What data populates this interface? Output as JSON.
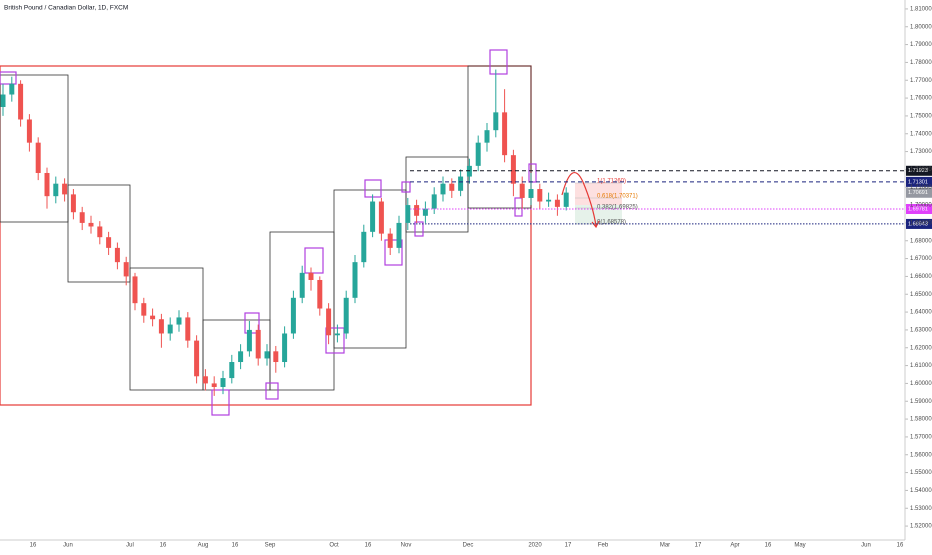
{
  "chart_data": {
    "type": "candlestick",
    "title": "British Pound / Canadian Dollar, 1D, FXCM",
    "up_color": "#26a69a",
    "down_color": "#ef5350",
    "open": [
      1.755,
      1.762,
      1.768,
      1.748,
      1.735,
      1.718,
      1.705,
      1.712,
      1.706,
      1.696,
      1.69,
      1.688,
      1.682,
      1.676,
      1.668,
      1.66,
      1.645,
      1.638,
      1.636,
      1.628,
      1.633,
      1.637,
      1.624,
      1.604,
      1.6,
      1.598,
      1.603,
      1.612,
      1.618,
      1.63,
      1.614,
      1.618,
      1.612,
      1.628,
      1.648,
      1.662,
      1.658,
      1.642,
      1.627,
      1.628,
      1.648,
      1.668,
      1.685,
      1.702,
      1.684,
      1.676,
      1.69,
      1.7,
      1.694,
      1.698,
      1.706,
      1.712,
      1.708,
      1.716,
      1.722,
      1.735,
      1.742,
      1.752,
      1.728,
      1.712,
      1.704,
      1.709,
      1.702,
      1.703,
      1.699
    ],
    "high": [
      1.768,
      1.772,
      1.77,
      1.751,
      1.738,
      1.721,
      1.716,
      1.715,
      1.709,
      1.699,
      1.694,
      1.691,
      1.685,
      1.679,
      1.671,
      1.662,
      1.648,
      1.642,
      1.639,
      1.637,
      1.641,
      1.64,
      1.627,
      1.608,
      1.604,
      1.607,
      1.616,
      1.622,
      1.635,
      1.633,
      1.622,
      1.621,
      1.632,
      1.652,
      1.666,
      1.665,
      1.66,
      1.645,
      1.633,
      1.652,
      1.672,
      1.689,
      1.706,
      1.704,
      1.687,
      1.694,
      1.704,
      1.703,
      1.702,
      1.71,
      1.716,
      1.715,
      1.72,
      1.726,
      1.739,
      1.746,
      1.776,
      1.765,
      1.731,
      1.716,
      1.718,
      1.712,
      1.707,
      1.706,
      1.71
    ],
    "low": [
      1.75,
      1.758,
      1.744,
      1.73,
      1.714,
      1.698,
      1.701,
      1.702,
      1.692,
      1.686,
      1.684,
      1.678,
      1.672,
      1.664,
      1.655,
      1.641,
      1.634,
      1.632,
      1.62,
      1.624,
      1.629,
      1.62,
      1.6,
      1.596,
      1.593,
      1.594,
      1.6,
      1.608,
      1.615,
      1.61,
      1.61,
      1.606,
      1.609,
      1.625,
      1.645,
      1.652,
      1.638,
      1.622,
      1.623,
      1.625,
      1.645,
      1.665,
      1.682,
      1.68,
      1.672,
      1.673,
      1.686,
      1.69,
      1.69,
      1.695,
      1.702,
      1.704,
      1.705,
      1.712,
      1.719,
      1.73,
      1.738,
      1.724,
      1.705,
      1.698,
      1.7,
      1.698,
      1.699,
      1.694,
      1.697
    ],
    "close": [
      1.762,
      1.768,
      1.748,
      1.735,
      1.718,
      1.705,
      1.712,
      1.706,
      1.696,
      1.69,
      1.688,
      1.682,
      1.676,
      1.668,
      1.66,
      1.645,
      1.638,
      1.636,
      1.628,
      1.633,
      1.637,
      1.624,
      1.604,
      1.6,
      1.598,
      1.603,
      1.612,
      1.618,
      1.63,
      1.614,
      1.618,
      1.612,
      1.628,
      1.648,
      1.662,
      1.658,
      1.642,
      1.627,
      1.628,
      1.648,
      1.668,
      1.685,
      1.702,
      1.684,
      1.676,
      1.69,
      1.7,
      1.694,
      1.698,
      1.706,
      1.712,
      1.708,
      1.716,
      1.722,
      1.735,
      1.742,
      1.752,
      1.728,
      1.712,
      1.704,
      1.709,
      1.702,
      1.703,
      1.699,
      1.707
    ],
    "ylim": [
      1.515,
      1.815
    ],
    "yticks": [
      {
        "value": 1.52,
        "label": "1.52000"
      },
      {
        "value": 1.53,
        "label": "1.53000"
      },
      {
        "value": 1.54,
        "label": "1.54000"
      },
      {
        "value": 1.55,
        "label": "1.55000"
      },
      {
        "value": 1.56,
        "label": "1.56000"
      },
      {
        "value": 1.57,
        "label": "1.57000"
      },
      {
        "value": 1.58,
        "label": "1.58000"
      },
      {
        "value": 1.59,
        "label": "1.59000"
      },
      {
        "value": 1.6,
        "label": "1.60000"
      },
      {
        "value": 1.61,
        "label": "1.61000"
      },
      {
        "value": 1.62,
        "label": "1.62000"
      },
      {
        "value": 1.63,
        "label": "1.63000"
      },
      {
        "value": 1.64,
        "label": "1.64000"
      },
      {
        "value": 1.65,
        "label": "1.65000"
      },
      {
        "value": 1.66,
        "label": "1.66000"
      },
      {
        "value": 1.67,
        "label": "1.67000"
      },
      {
        "value": 1.68,
        "label": "1.68000"
      },
      {
        "value": 1.69,
        "label": "1.69000"
      },
      {
        "value": 1.7,
        "label": "1.70000"
      },
      {
        "value": 1.71,
        "label": "1.71000"
      },
      {
        "value": 1.72,
        "label": "1.72000"
      },
      {
        "value": 1.73,
        "label": "1.73000"
      },
      {
        "value": 1.74,
        "label": "1.74000"
      },
      {
        "value": 1.75,
        "label": "1.75000"
      },
      {
        "value": 1.76,
        "label": "1.76000"
      },
      {
        "value": 1.77,
        "label": "1.77000"
      },
      {
        "value": 1.78,
        "label": "1.78000"
      },
      {
        "value": 1.79,
        "label": "1.79000"
      },
      {
        "value": 1.8,
        "label": "1.80000"
      },
      {
        "value": 1.81,
        "label": "1.81000"
      }
    ],
    "xtick_labels": [
      "16",
      "Jun",
      "Jul",
      "16",
      "Aug",
      "16",
      "Sep",
      "Oct",
      "16",
      "Nov",
      "Dec",
      "2020",
      "17",
      "Feb",
      "Mar",
      "17",
      "Apr",
      "16",
      "May",
      "Jun",
      "16"
    ],
    "price_lines": [
      {
        "value": 1.71923,
        "color": "#131722",
        "style": "dashed"
      },
      {
        "value": 1.71301,
        "color": "#1a237e",
        "style": "dashed"
      },
      {
        "value": 1.70691,
        "color": "#9598a1",
        "style": "none"
      },
      {
        "value": 1.69781,
        "color": "#e040fb",
        "style": "dotted"
      },
      {
        "value": 1.68943,
        "color": "#1a237e",
        "style": "dotted"
      }
    ],
    "fib_labels": [
      "1(1.71260)",
      "0.618(1.70371)",
      "0.382(1.69825)",
      "0(1.68578)"
    ]
  }
}
